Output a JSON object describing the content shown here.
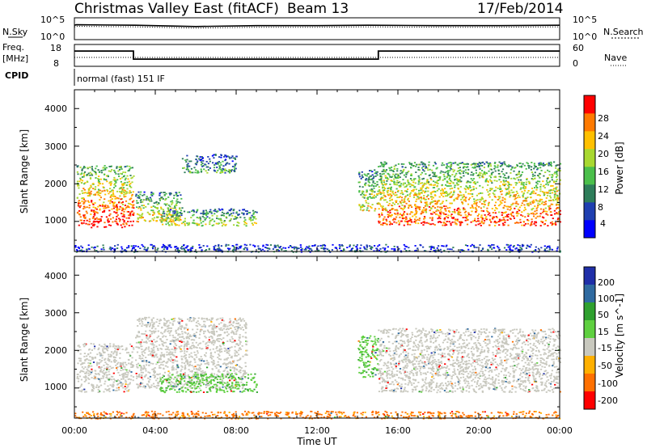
{
  "header": {
    "title": "Christmas Valley East (fitACF)",
    "beam": "Beam 13",
    "date": "17/Feb/2014"
  },
  "top_panels": {
    "nsky_label": "N.Sky",
    "nsearch_label": "N.Search",
    "noise_ticks": [
      "10^5",
      "10^0"
    ],
    "freq_label": "Freq.",
    "freq_unit": "[MHz]",
    "freq_ticks": [
      "18",
      "8"
    ],
    "nave_label": "Nave",
    "nave_ticks": [
      "60",
      "0"
    ],
    "cpid_label": "CPID",
    "cpid_value": "normal (fast) 151 IF"
  },
  "power_panel": {
    "ylabel": "Slant Range [km]",
    "yticks": [
      "4000",
      "3000",
      "2000",
      "1000"
    ],
    "colorbar_label": "Power [dB]",
    "colorbar_ticks": [
      "28",
      "24",
      "20",
      "16",
      "12",
      "8",
      "4"
    ]
  },
  "velocity_panel": {
    "ylabel": "Slant Range [km]",
    "yticks": [
      "4000",
      "3000",
      "2000",
      "1000"
    ],
    "colorbar_label": "Velocity [m s^-1]",
    "colorbar_ticks": [
      "200",
      "100",
      "50",
      "15",
      "-15",
      "-50",
      "-100",
      "-200"
    ]
  },
  "xaxis": {
    "label": "Time UT",
    "ticks": [
      "00:00",
      "04:00",
      "08:00",
      "12:00",
      "16:00",
      "20:00",
      "00:00"
    ]
  },
  "colors": {
    "power_scale": [
      "#0000ff",
      "#1f3fb0",
      "#2e7d5a",
      "#4bbf4b",
      "#a8d830",
      "#ffc000",
      "#ff7a00",
      "#ff0000"
    ],
    "velocity_scale": [
      "#1f2fa8",
      "#2f6aa0",
      "#2fa02f",
      "#5fd040",
      "#c8c8be",
      "#ffb000",
      "#ff7000",
      "#ff0000"
    ]
  },
  "chart_data": [
    {
      "type": "line",
      "name": "noise",
      "x": [
        0,
        0.1,
        3,
        6,
        9,
        12,
        14.5,
        18,
        21,
        24
      ],
      "y_log10": [
        3.3,
        3.4,
        3.3,
        3.0,
        3.2,
        3.2,
        3.3,
        3.2,
        3.2,
        3.3
      ],
      "ylim_log10": [
        0,
        5
      ]
    },
    {
      "type": "line",
      "name": "frequency",
      "x": [
        0,
        2.92,
        2.92,
        15.03,
        15.03,
        24
      ],
      "y": [
        15.0,
        15.0,
        11.3,
        11.3,
        15.0,
        15.0
      ],
      "ylim": [
        8,
        18
      ]
    },
    {
      "type": "heatmap",
      "name": "power",
      "xlim": [
        0,
        24
      ],
      "ylim": [
        200,
        4500
      ],
      "zlim": [
        0,
        30
      ],
      "regions": [
        {
          "x": [
            0.1,
            2.9
          ],
          "y": [
            850,
            2500
          ],
          "level": 0.85
        },
        {
          "x": [
            3.0,
            5.3
          ],
          "y": [
            1000,
            1800
          ],
          "level": 0.6
        },
        {
          "x": [
            5.3,
            8.0
          ],
          "y": [
            2300,
            2800
          ],
          "level": 0.35
        },
        {
          "x": [
            4.2,
            9.0
          ],
          "y": [
            900,
            1350
          ],
          "level": 0.5
        },
        {
          "x": [
            14.0,
            15.0
          ],
          "y": [
            1300,
            2400
          ],
          "level": 0.55
        },
        {
          "x": [
            15.0,
            24.0
          ],
          "y": [
            900,
            2600
          ],
          "level": 0.75
        },
        {
          "x": [
            0.0,
            24.0
          ],
          "y": [
            200,
            400
          ],
          "level": 0.2
        }
      ]
    },
    {
      "type": "heatmap",
      "name": "velocity",
      "xlim": [
        0,
        24
      ],
      "ylim": [
        200,
        4500
      ],
      "zlim": [
        -250,
        250
      ],
      "regions": [
        {
          "x": [
            0.1,
            2.9
          ],
          "y": [
            900,
            2200
          ],
          "vel": 0
        },
        {
          "x": [
            3.0,
            8.5
          ],
          "y": [
            1000,
            2900
          ],
          "vel": 0
        },
        {
          "x": [
            4.2,
            9.0
          ],
          "y": [
            900,
            1400
          ],
          "vel": 40
        },
        {
          "x": [
            14.0,
            15.0
          ],
          "y": [
            1300,
            2400
          ],
          "vel": 40
        },
        {
          "x": [
            15.0,
            24.0
          ],
          "y": [
            900,
            2600
          ],
          "vel": 0
        },
        {
          "x": [
            0.0,
            24.0
          ],
          "y": [
            200,
            400
          ],
          "vel": -60
        }
      ]
    }
  ]
}
